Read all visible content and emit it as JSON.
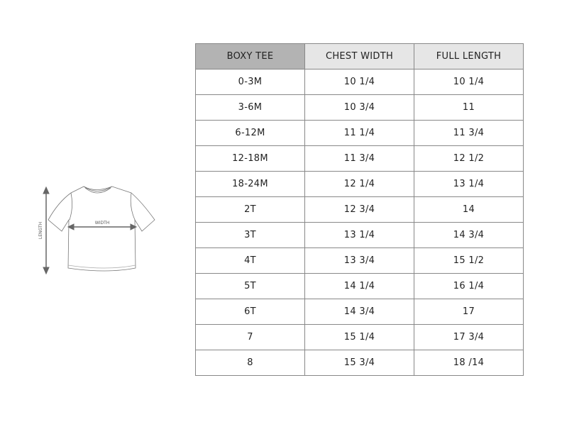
{
  "illustration": {
    "length_label": "LENGTH",
    "width_label": "WIDTH"
  },
  "table": {
    "headers": [
      "BOXY TEE",
      "CHEST WIDTH",
      "FULL LENGTH"
    ],
    "rows": [
      [
        "0-3M",
        "10 1/4",
        "10 1/4"
      ],
      [
        "3-6M",
        "10 3/4",
        "11"
      ],
      [
        "6-12M",
        "11 1/4",
        "11 3/4"
      ],
      [
        "12-18M",
        "11 3/4",
        "12 1/2"
      ],
      [
        "18-24M",
        "12 1/4",
        "13 1/4"
      ],
      [
        "2T",
        "12 3/4",
        "14"
      ],
      [
        "3T",
        "13 1/4",
        "14 3/4"
      ],
      [
        "4T",
        "13 3/4",
        "15 1/2"
      ],
      [
        "5T",
        "14 1/4",
        "16 1/4"
      ],
      [
        "6T",
        "14 3/4",
        "17"
      ],
      [
        "7",
        "15 1/4",
        "17 3/4"
      ],
      [
        "8",
        "15 3/4",
        "18 /14"
      ]
    ]
  },
  "colors": {
    "header_first": "#b3b3b3",
    "header": "#e6e6e6",
    "border": "#888888"
  }
}
